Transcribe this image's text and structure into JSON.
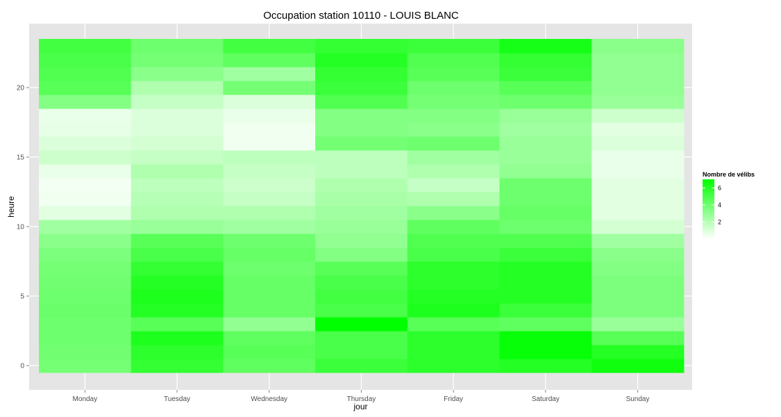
{
  "chart_data": {
    "type": "heatmap",
    "title": "Occupation station 10110 - LOUIS BLANC",
    "xlabel": "jour",
    "ylabel": "heure",
    "x_categories": [
      "Monday",
      "Tuesday",
      "Wednesday",
      "Thursday",
      "Friday",
      "Saturday",
      "Sunday"
    ],
    "y_range": [
      0,
      23
    ],
    "y_ticks": [
      0,
      5,
      10,
      15,
      20
    ],
    "grid": true,
    "legend": {
      "title": "Nombre de vélibs",
      "placement": "right",
      "ticks": [
        2,
        4,
        6
      ],
      "range": [
        0,
        7
      ],
      "color_low": "#ffffff",
      "color_high": "#00ff00"
    },
    "values": {
      "Monday": [
        3.8,
        3.9,
        4.0,
        4.0,
        4.1,
        4.0,
        3.9,
        3.8,
        3.6,
        3.2,
        2.6,
        0.8,
        0.4,
        0.3,
        0.6,
        1.4,
        1.0,
        0.7,
        0.6,
        3.4,
        4.6,
        4.8,
        5.0,
        5.2
      ],
      "Tuesday": [
        5.6,
        5.8,
        6.2,
        4.6,
        6.0,
        6.2,
        6.0,
        5.6,
        5.0,
        4.6,
        2.8,
        2.2,
        2.0,
        1.8,
        2.2,
        1.6,
        1.2,
        1.0,
        1.0,
        1.6,
        2.2,
        3.2,
        3.8,
        4.0
      ],
      "Wednesday": [
        4.4,
        4.6,
        4.4,
        3.0,
        4.2,
        4.2,
        4.2,
        4.0,
        4.2,
        4.0,
        2.6,
        2.2,
        1.6,
        1.4,
        1.6,
        1.8,
        0.4,
        0.4,
        0.6,
        1.0,
        3.8,
        2.6,
        4.4,
        5.2
      ],
      "Thursday": [
        5.4,
        5.0,
        5.0,
        7.0,
        5.0,
        5.2,
        5.0,
        4.6,
        3.4,
        3.0,
        2.8,
        2.6,
        2.4,
        2.2,
        1.8,
        1.8,
        3.8,
        3.4,
        3.4,
        4.8,
        5.4,
        5.6,
        6.0,
        5.6
      ],
      "Friday": [
        5.8,
        5.8,
        5.8,
        4.6,
        6.2,
        6.0,
        5.8,
        5.8,
        5.0,
        4.8,
        4.4,
        3.2,
        2.2,
        1.6,
        2.2,
        2.6,
        4.0,
        3.2,
        3.4,
        3.8,
        4.0,
        4.6,
        4.8,
        5.4
      ],
      "Saturday": [
        6.0,
        6.8,
        6.8,
        4.4,
        5.4,
        6.0,
        6.0,
        6.0,
        5.4,
        4.8,
        4.0,
        4.2,
        4.0,
        4.0,
        3.0,
        2.8,
        2.8,
        2.6,
        2.8,
        4.0,
        4.6,
        5.4,
        5.6,
        6.4
      ],
      "Sunday": [
        6.6,
        6.0,
        4.6,
        2.8,
        3.6,
        3.6,
        3.6,
        3.4,
        3.2,
        2.6,
        1.2,
        0.8,
        0.8,
        0.8,
        0.6,
        0.6,
        1.0,
        0.8,
        1.4,
        2.8,
        3.0,
        3.0,
        3.0,
        3.2
      ]
    }
  }
}
